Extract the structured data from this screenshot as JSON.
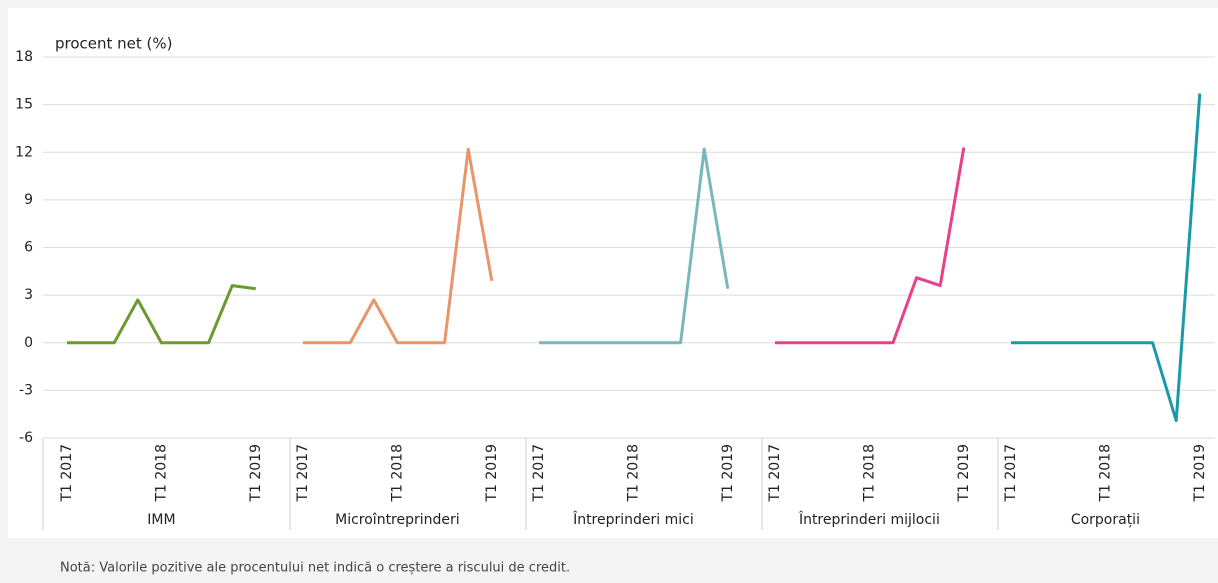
{
  "chart_data": {
    "type": "line",
    "y_label": "procent net (%)",
    "note": "Notă: Valorile pozitive ale procentului net indică o creștere a riscului de credit.",
    "categories": [
      "T1 2017",
      null,
      null,
      null,
      "T1 2018",
      null,
      null,
      null,
      "T1 2019"
    ],
    "series": [
      {
        "name": "IMM",
        "color": "#6b9a2e",
        "values": [
          0,
          0,
          0,
          2.7,
          0,
          0,
          0,
          3.6,
          3.4
        ]
      },
      {
        "name": "Microîntreprinderi",
        "color": "#e8956a",
        "values": [
          0,
          0,
          0,
          2.7,
          0,
          0,
          0,
          12.2,
          3.9
        ]
      },
      {
        "name": "Întreprinderi mici",
        "color": "#7ab6c0",
        "values": [
          0,
          0,
          0,
          0,
          0,
          0,
          0,
          12.2,
          3.4
        ]
      },
      {
        "name": "Întreprinderi mijlocii",
        "color": "#e8408a",
        "values": [
          0,
          0,
          0,
          0,
          0,
          0,
          4.1,
          3.6,
          12.3
        ]
      },
      {
        "name": "Corporații",
        "color": "#1a9aa8",
        "values": [
          0,
          0,
          0,
          0,
          0,
          0,
          0,
          -4.9,
          15.7
        ]
      }
    ],
    "ylim": [
      -6,
      18
    ],
    "yticks": [
      -6,
      -3,
      0,
      3,
      6,
      9,
      12,
      15,
      18
    ],
    "grid": true
  }
}
